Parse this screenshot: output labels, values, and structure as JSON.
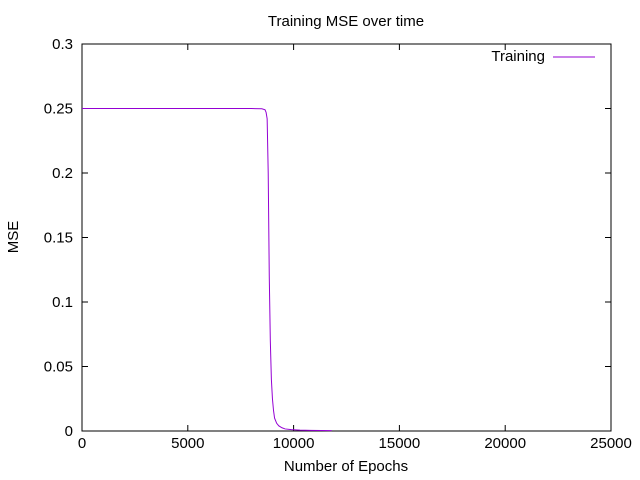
{
  "chart_data": {
    "type": "line",
    "title": "Training MSE over time",
    "xlabel": "Number of Epochs",
    "ylabel": "MSE",
    "xlim": [
      0,
      25000
    ],
    "ylim": [
      0,
      0.3
    ],
    "xticks": [
      0,
      5000,
      10000,
      15000,
      20000,
      25000
    ],
    "xtick_labels": [
      "0",
      "5000",
      "10000",
      "15000",
      "20000",
      "25000"
    ],
    "yticks": [
      0,
      0.05,
      0.1,
      0.15,
      0.2,
      0.25,
      0.3
    ],
    "ytick_labels": [
      "0",
      "0.05",
      "0.1",
      "0.15",
      "0.2",
      "0.25",
      "0.3"
    ],
    "grid": false,
    "legend_position": "top-right",
    "series": [
      {
        "name": "Training",
        "color": "#9400d3",
        "points": [
          [
            0,
            0.25
          ],
          [
            8000,
            0.25
          ],
          [
            8500,
            0.2498
          ],
          [
            8650,
            0.249
          ],
          [
            8700,
            0.247
          ],
          [
            8750,
            0.242
          ],
          [
            8800,
            0.2
          ],
          [
            8850,
            0.12
          ],
          [
            8900,
            0.07
          ],
          [
            8950,
            0.04
          ],
          [
            9000,
            0.025
          ],
          [
            9050,
            0.016
          ],
          [
            9100,
            0.01
          ],
          [
            9200,
            0.006
          ],
          [
            9300,
            0.004
          ],
          [
            9450,
            0.0025
          ],
          [
            9600,
            0.0016
          ],
          [
            9900,
            0.0011
          ],
          [
            10300,
            0.0007
          ],
          [
            10800,
            0.0005
          ],
          [
            11300,
            0.0004
          ],
          [
            11800,
            0.0003
          ]
        ]
      }
    ]
  }
}
